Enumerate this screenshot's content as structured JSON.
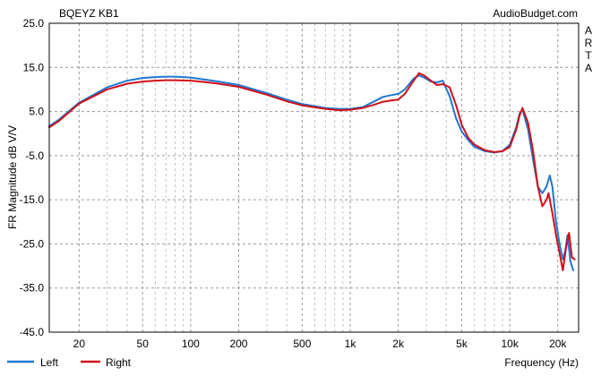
{
  "chart_data": {
    "type": "line",
    "title": "BQEYZ KB1",
    "watermark": "AudioBudget.com",
    "side_label": [
      "A",
      "R",
      "T",
      "A"
    ],
    "xlabel": "Frequency (Hz)",
    "ylabel": "FR Magnitude dB V/V",
    "x_scale": "log",
    "xlim": [
      13,
      27000
    ],
    "ylim": [
      -45,
      25
    ],
    "y_ticks": [
      25.0,
      15.0,
      5.0,
      -5.0,
      -15.0,
      -25.0,
      -35.0,
      -45.0
    ],
    "y_tick_labels": [
      "25.0",
      "15.0",
      "5.0",
      "-5.0",
      "-15.0",
      "-25.0",
      "-35.0",
      "-45.0"
    ],
    "x_ticks": [
      20,
      50,
      100,
      200,
      500,
      1000,
      2000,
      5000,
      10000,
      20000
    ],
    "x_tick_labels": [
      "20",
      "50",
      "100",
      "200",
      "500",
      "1k",
      "2k",
      "5k",
      "10k",
      "20k"
    ],
    "grid": true,
    "legend_position": "bottom-left",
    "series": [
      {
        "name": "Left",
        "color": "#1f77d2",
        "x": [
          13,
          15,
          20,
          30,
          40,
          50,
          60,
          70,
          80,
          100,
          120,
          150,
          200,
          300,
          400,
          500,
          700,
          850,
          1000,
          1200,
          1400,
          1600,
          1800,
          2000,
          2200,
          2500,
          2700,
          2900,
          3200,
          3500,
          3800,
          4200,
          4600,
          5000,
          5500,
          6000,
          7000,
          8000,
          9000,
          10000,
          11000,
          11500,
          12000,
          13000,
          14000,
          15000,
          16000,
          17000,
          17800,
          18500,
          19500,
          20500,
          21500,
          22300,
          23000,
          24000,
          25000
        ],
        "y": [
          1.7,
          3.2,
          7.0,
          10.5,
          12.0,
          12.6,
          12.8,
          12.9,
          12.9,
          12.7,
          12.3,
          11.8,
          11.0,
          9.2,
          7.7,
          6.7,
          5.8,
          5.6,
          5.6,
          6.0,
          7.2,
          8.3,
          8.7,
          9.0,
          10.0,
          12.5,
          13.2,
          12.7,
          11.8,
          11.6,
          12.0,
          8.5,
          3.5,
          0.5,
          -1.5,
          -3.0,
          -4.0,
          -4.3,
          -4.0,
          -2.5,
          1.5,
          4.5,
          5.5,
          1.0,
          -6.0,
          -12.0,
          -13.5,
          -12.0,
          -9.5,
          -12.0,
          -20.0,
          -25.0,
          -28.5,
          -26.5,
          -23.0,
          -29.0,
          -31.0
        ]
      },
      {
        "name": "Right",
        "color": "#d0101a",
        "x": [
          13,
          15,
          20,
          30,
          40,
          50,
          60,
          70,
          80,
          100,
          120,
          150,
          200,
          300,
          400,
          500,
          700,
          850,
          1000,
          1200,
          1400,
          1600,
          1800,
          2000,
          2200,
          2500,
          2700,
          2900,
          3200,
          3500,
          3800,
          4200,
          4600,
          5000,
          5500,
          6000,
          7000,
          8000,
          9000,
          10000,
          11000,
          11500,
          12000,
          13000,
          14000,
          15000,
          16000,
          17000,
          17500,
          18500,
          19500,
          20500,
          21500,
          22500,
          23500,
          24500,
          25500
        ],
        "y": [
          1.4,
          2.9,
          6.8,
          10.0,
          11.3,
          11.8,
          12.0,
          12.1,
          12.1,
          12.0,
          11.7,
          11.3,
          10.6,
          8.8,
          7.3,
          6.4,
          5.6,
          5.3,
          5.4,
          5.8,
          6.5,
          7.2,
          7.5,
          7.7,
          9.0,
          12.0,
          13.7,
          13.2,
          12.0,
          11.0,
          11.2,
          10.5,
          6.5,
          2.0,
          -1.0,
          -2.5,
          -3.8,
          -4.2,
          -4.0,
          -3.0,
          1.0,
          4.0,
          5.8,
          2.5,
          -4.0,
          -12.0,
          -16.5,
          -15.0,
          -13.5,
          -18.0,
          -23.0,
          -27.0,
          -31.0,
          -26.0,
          -22.5,
          -28.0,
          -28.5
        ]
      }
    ]
  }
}
